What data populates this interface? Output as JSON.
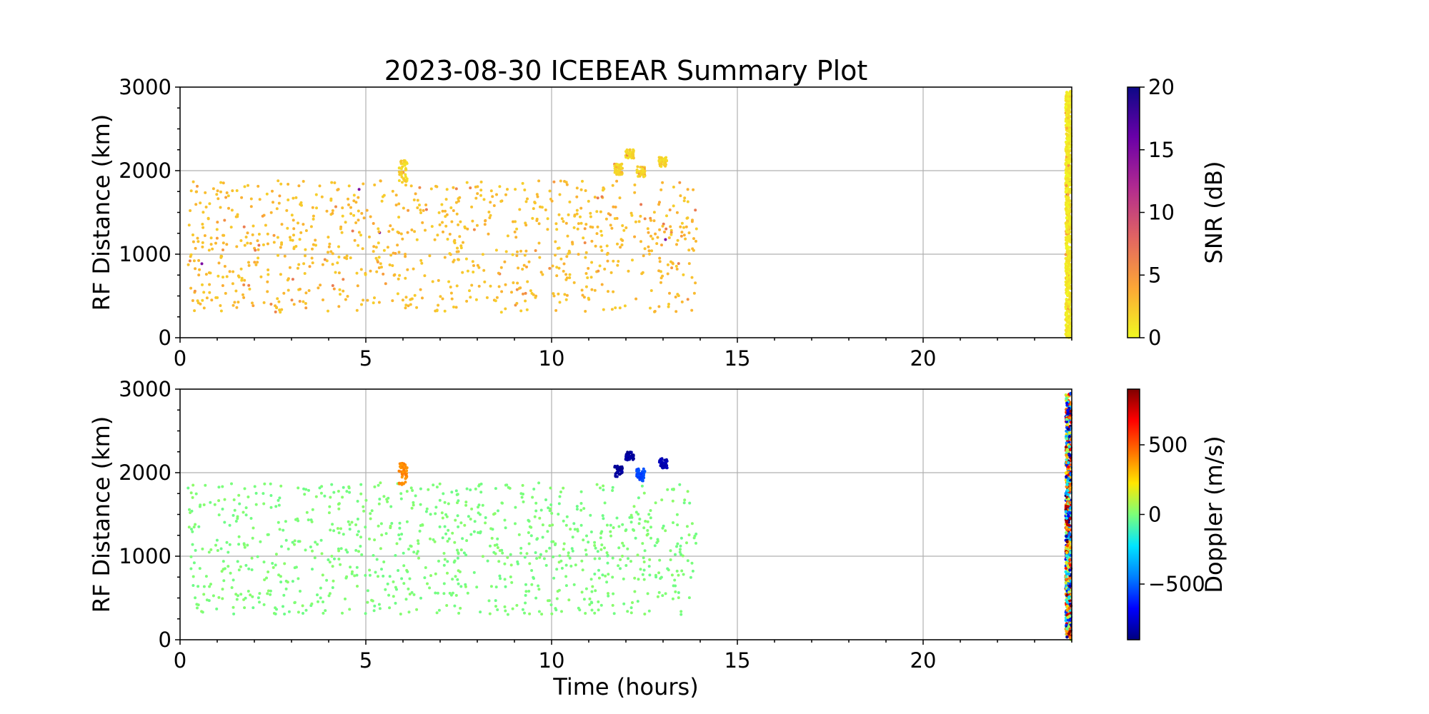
{
  "chart_data": [
    {
      "type": "scatter",
      "panel": "snr",
      "title": "2023-08-30 ICEBEAR Summary Plot",
      "xlabel": "",
      "ylabel": "RF Distance (km)",
      "xlim": [
        0,
        24
      ],
      "ylim": [
        0,
        3000
      ],
      "x_ticks": [
        0,
        5,
        10,
        15,
        20
      ],
      "y_ticks": [
        0,
        1000,
        2000,
        3000
      ],
      "grid": true,
      "colorbar": {
        "label": "SNR (dB)",
        "range": [
          0,
          20
        ],
        "ticks": [
          0,
          5,
          10,
          15,
          20
        ],
        "colormap": "plasma_r",
        "colors": [
          "#f0f921",
          "#fca636",
          "#e16462",
          "#b12a90",
          "#6a00a8",
          "#0d0887"
        ]
      },
      "clusters": [
        {
          "name": "background scatter",
          "x_range": [
            0.2,
            13.9
          ],
          "y_range": [
            300,
            1880
          ],
          "value_typical": 2
        },
        {
          "name": "echo 6h",
          "x": 6.0,
          "y_range": [
            1850,
            2120
          ],
          "value_typical": 1
        },
        {
          "name": "echo 11.8h",
          "x": 11.8,
          "y_range": [
            1950,
            2080
          ],
          "value_typical": 1
        },
        {
          "name": "echo 12.1h",
          "x": 12.1,
          "y_range": [
            2150,
            2250
          ],
          "value_typical": 1
        },
        {
          "name": "echo 12.4h",
          "x": 12.4,
          "y_range": [
            1900,
            2050
          ],
          "value_typical": 1
        },
        {
          "name": "echo 13h",
          "x": 13.0,
          "y_range": [
            2050,
            2170
          ],
          "value_typical": 1
        },
        {
          "name": "end-of-day band",
          "x": 23.9,
          "y_range": [
            0,
            2950
          ],
          "value_typical": 0
        }
      ]
    },
    {
      "type": "scatter",
      "panel": "doppler",
      "title": "",
      "xlabel": "Time (hours)",
      "ylabel": "RF Distance (km)",
      "xlim": [
        0,
        24
      ],
      "ylim": [
        0,
        3000
      ],
      "x_ticks": [
        0,
        5,
        10,
        15,
        20
      ],
      "y_ticks": [
        0,
        1000,
        2000,
        3000
      ],
      "grid": true,
      "colorbar": {
        "label": "Doppler (m/s)",
        "range": [
          -900,
          900
        ],
        "ticks": [
          -500,
          0,
          500
        ],
        "tick_labels": [
          "−500",
          "0",
          "500"
        ],
        "colormap": "jet_r",
        "colors": [
          "#00007f",
          "#0000ff",
          "#007fff",
          "#00e5ff",
          "#7cff79",
          "#ffe600",
          "#ff7100",
          "#ff0000",
          "#7f0000"
        ]
      },
      "clusters": [
        {
          "name": "background scatter",
          "x_range": [
            0.2,
            13.9
          ],
          "y_range": [
            300,
            1880
          ],
          "value_typical": 0
        },
        {
          "name": "echo 6h",
          "x": 6.0,
          "y_range": [
            1850,
            2120
          ],
          "value_typical": 400
        },
        {
          "name": "echo 11.8h",
          "x": 11.8,
          "y_range": [
            1950,
            2080
          ],
          "value_typical": -850
        },
        {
          "name": "echo 12.1h",
          "x": 12.1,
          "y_range": [
            2150,
            2250
          ],
          "value_typical": -850
        },
        {
          "name": "echo 12.4h",
          "x": 12.4,
          "y_range": [
            1900,
            2050
          ],
          "value_typical": -550
        },
        {
          "name": "echo 13h",
          "x": 13.0,
          "y_range": [
            2050,
            2170
          ],
          "value_typical": -800
        },
        {
          "name": "end-of-day band",
          "x": 23.9,
          "y_range": [
            0,
            2950
          ],
          "value_typical": "mixed"
        }
      ]
    }
  ]
}
